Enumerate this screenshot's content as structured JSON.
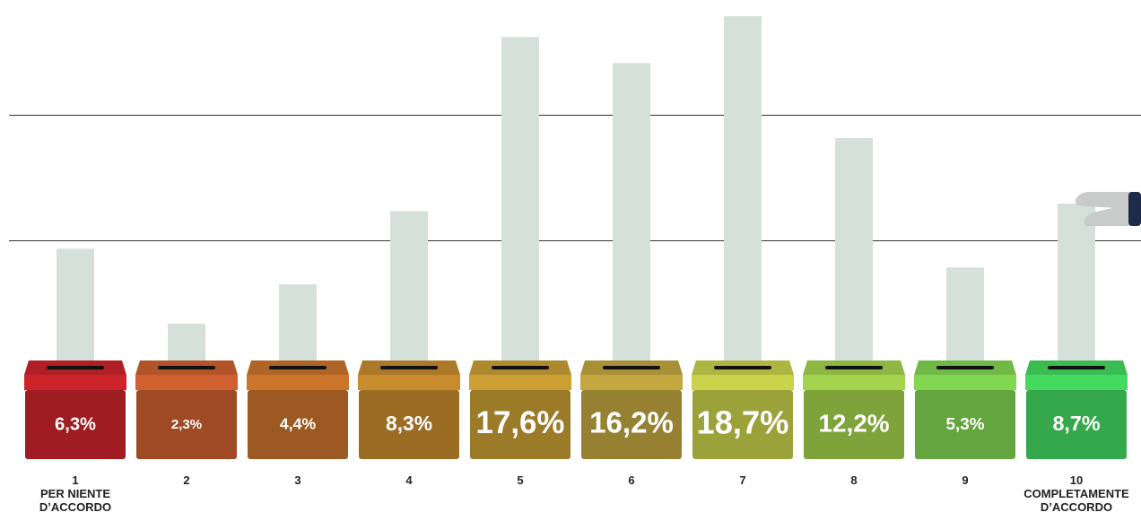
{
  "chart_data": {
    "type": "bar",
    "categories": [
      "1",
      "2",
      "3",
      "4",
      "5",
      "6",
      "7",
      "8",
      "9",
      "10"
    ],
    "values": [
      6.3,
      2.3,
      4.4,
      8.3,
      17.6,
      16.2,
      18.7,
      12.2,
      5.3,
      8.7
    ],
    "value_labels": [
      "6,3%",
      "2,3%",
      "4,4%",
      "8,3%",
      "17,6%",
      "16,2%",
      "18,7%",
      "12,2%",
      "5,3%",
      "8,7%"
    ],
    "colors": [
      "#9e1c22",
      "#a04a25",
      "#9c5a22",
      "#9a6c24",
      "#9b7a28",
      "#968132",
      "#9ba23a",
      "#7ea33b",
      "#65a53f",
      "#34a84a"
    ],
    "scale_labels": {
      "low": "PER NIENTE D’ACCORDO",
      "high": "COMPLETAMENTE D’ACCORDO"
    }
  }
}
